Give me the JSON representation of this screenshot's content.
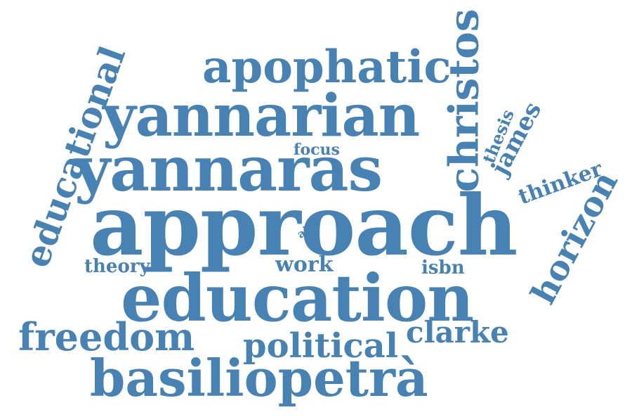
{
  "colors": {
    "word": "#4682b4",
    "background": "#ffffff"
  },
  "words": {
    "approach": "approach",
    "education": "education",
    "yannaras": "yannaras",
    "yannarian": "yannarian",
    "basiliopetra": "basiliopetrà",
    "apophatic": "apophatic",
    "christos": "christos",
    "educational": "educational",
    "freedom": "freedom",
    "political": "political",
    "horizon": "horizon",
    "clarke": "clarke",
    "thinker": "thinker",
    "james": "james",
    "thesis": "thesis",
    "theory": "theory",
    "work": "work",
    "isbn": "isbn",
    "focus": "focus",
    "aim": "aim"
  }
}
